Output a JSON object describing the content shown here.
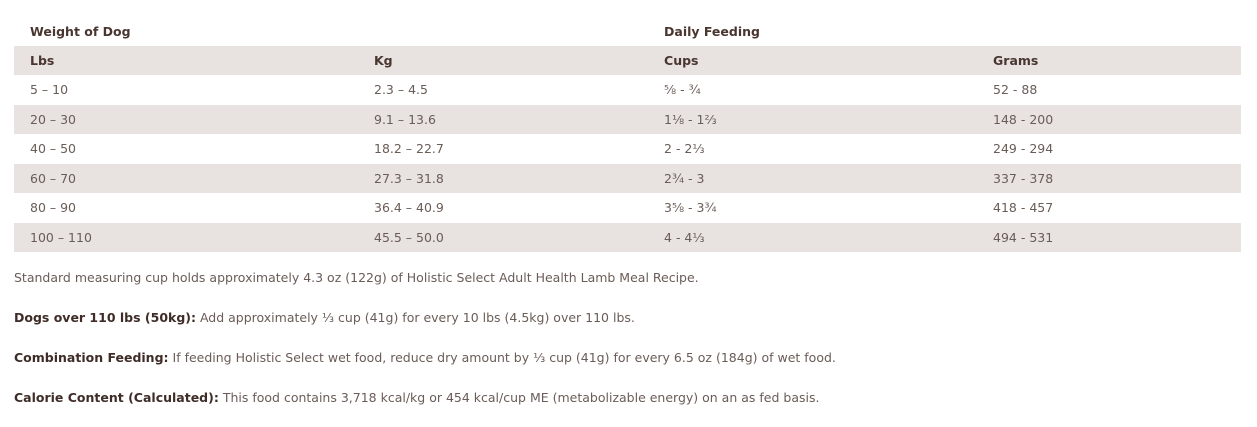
{
  "table": {
    "group_headers": {
      "weight_of_dog": "Weight of Dog",
      "daily_feeding": "Daily Feeding"
    },
    "columns": [
      "Lbs",
      "Kg",
      "Cups",
      "Grams"
    ],
    "rows": [
      [
        "5 – 10",
        "2.3 – 4.5",
        "⅝ - ¾",
        "52 - 88"
      ],
      [
        "20 – 30",
        "9.1 – 13.6",
        "1⅛ - 1⅔",
        "148 - 200"
      ],
      [
        "40 – 50",
        "18.2 – 22.7",
        "2 - 2⅓",
        "249 - 294"
      ],
      [
        "60 – 70",
        "27.3 – 31.8",
        "2¾ - 3",
        "337 - 378"
      ],
      [
        "80 – 90",
        "36.4 – 40.9",
        "3⅝ - 3¾",
        "418 - 457"
      ],
      [
        "100 – 110",
        "45.5 – 50.0",
        "4 - 4⅓",
        "494 - 531"
      ]
    ]
  },
  "notes": {
    "standard_cup": "Standard measuring cup holds approximately 4.3 oz (122g) of Holistic Select Adult Health Lamb Meal Recipe.",
    "dogs_over": {
      "label": "Dogs over 110 lbs (50kg):",
      "text": " Add approximately ⅓ cup (41g) for every 10 lbs (4.5kg) over 110 lbs."
    },
    "combination": {
      "label": "Combination Feeding:",
      "text": " If feeding Holistic Select wet food, reduce dry amount by ⅓ cup (41g) for every 6.5 oz (184g) of wet food."
    },
    "calorie": {
      "label": "Calorie Content (Calculated):",
      "text": " This food contains 3,718 kcal/kg or 454 kcal/cup ME (metabolizable energy) on an as fed basis."
    }
  },
  "colors": {
    "stripe": "#e8e3e1",
    "heading_text": "#4a3630",
    "body_text": "#6a5c57"
  }
}
